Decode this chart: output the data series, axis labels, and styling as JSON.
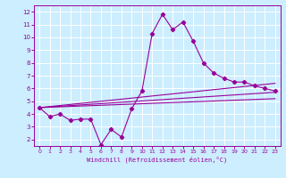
{
  "title": "",
  "xlabel": "Windchill (Refroidissement éolien,°C)",
  "ylabel": "",
  "bg_color": "#cceeff",
  "grid_color": "#ffffff",
  "line_color": "#990099",
  "xlim": [
    -0.5,
    23.5
  ],
  "ylim": [
    1.5,
    12.5
  ],
  "xticks": [
    0,
    1,
    2,
    3,
    4,
    5,
    6,
    7,
    8,
    9,
    10,
    11,
    12,
    13,
    14,
    15,
    16,
    17,
    18,
    19,
    20,
    21,
    22,
    23
  ],
  "yticks": [
    2,
    3,
    4,
    5,
    6,
    7,
    8,
    9,
    10,
    11,
    12
  ],
  "main_x": [
    0,
    1,
    2,
    3,
    4,
    5,
    6,
    7,
    8,
    9,
    10,
    11,
    12,
    13,
    14,
    15,
    16,
    17,
    18,
    19,
    20,
    21,
    22,
    23
  ],
  "main_y": [
    4.5,
    3.8,
    4.0,
    3.5,
    3.6,
    3.6,
    1.6,
    2.8,
    2.2,
    4.4,
    5.8,
    10.3,
    11.8,
    10.6,
    11.2,
    9.7,
    8.0,
    7.2,
    6.8,
    6.5,
    6.5,
    6.2,
    6.0,
    5.8
  ],
  "line1_x": [
    0,
    23
  ],
  "line1_y": [
    4.5,
    5.2
  ],
  "line2_x": [
    0,
    23
  ],
  "line2_y": [
    4.5,
    5.7
  ],
  "line3_x": [
    0,
    23
  ],
  "line3_y": [
    4.5,
    6.4
  ]
}
